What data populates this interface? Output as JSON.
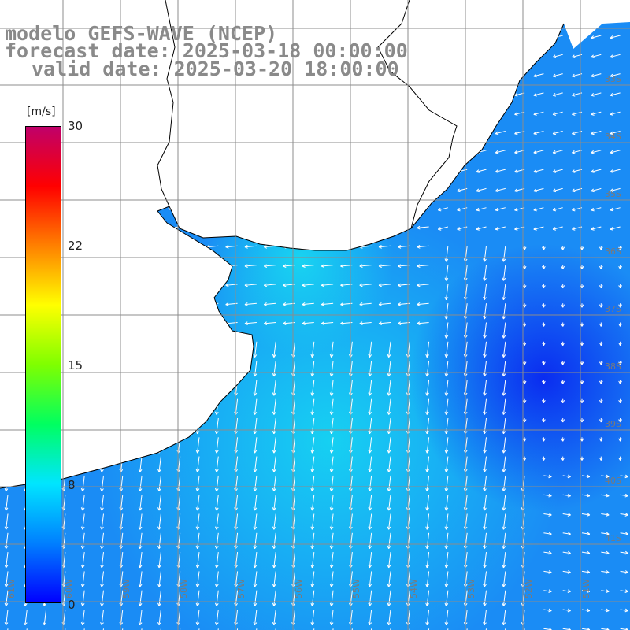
{
  "titles": {
    "model": "modelo GEFS-WAVE (NCEP)",
    "forecast": "forecast date: 2025-03-18 00:00:00",
    "valid": "valid date: 2025-03-20 18:00:00"
  },
  "colorbar": {
    "unit": "[m/s]",
    "ticks": [
      "30",
      "22",
      "15",
      "8",
      "0"
    ],
    "colors": [
      "#0000ff",
      "#0080ff",
      "#00e5ff",
      "#00ff60",
      "#7fff00",
      "#ffff00",
      "#ff8000",
      "#ff0000",
      "#c0006a"
    ]
  },
  "map": {
    "ocean_low_color": "#0a2cf0",
    "ocean_mid_color": "#1a8cf5",
    "ocean_high_color": "#18e2f0",
    "land_color": "#ffffff",
    "grid_color": "#8c8c8c",
    "arrow_color": "#ffffff",
    "lat_labels": [
      "33S",
      "34S",
      "35S",
      "36S",
      "37S",
      "38S",
      "39S",
      "40S",
      "41S"
    ],
    "lon_labels": [
      "61W",
      "60W",
      "59W",
      "58W",
      "57W",
      "56W",
      "55W",
      "54W",
      "53W",
      "52W",
      "51W"
    ]
  }
}
